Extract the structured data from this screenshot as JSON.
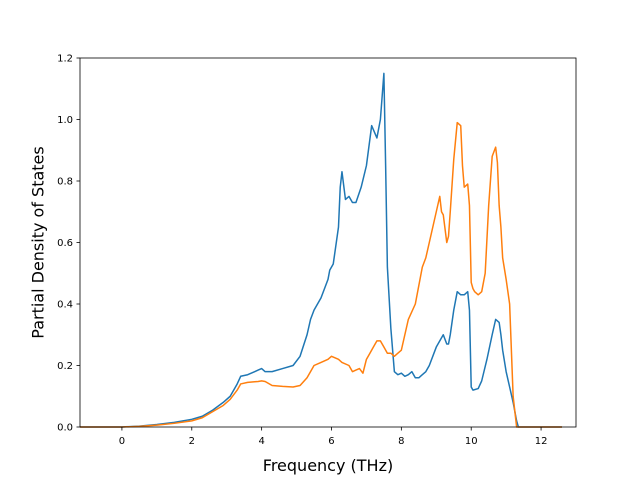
{
  "chart_data": {
    "type": "line",
    "title": "",
    "xlabel": "Frequency (THz)",
    "ylabel": "Partial Density of States",
    "xlim": [
      -1.2,
      13.0
    ],
    "ylim": [
      0.0,
      1.2
    ],
    "xticks": [
      0,
      2,
      4,
      6,
      8,
      10,
      12
    ],
    "xtick_labels": [
      "0",
      "2",
      "4",
      "6",
      "8",
      "10",
      "12"
    ],
    "yticks": [
      0.0,
      0.2,
      0.4,
      0.6,
      0.8,
      1.0,
      1.2
    ],
    "ytick_labels": [
      "0.0",
      "0.2",
      "0.4",
      "0.6",
      "0.8",
      "1.0",
      "1.2"
    ],
    "grid": false,
    "series": [
      {
        "color": "#1f77b4",
        "x": [
          -1.2,
          0,
          0.5,
          1,
          1.5,
          2,
          2.3,
          2.6,
          2.9,
          3.1,
          3.3,
          3.4,
          3.6,
          3.8,
          3.9,
          4.0,
          4.1,
          4.3,
          4.6,
          4.9,
          5.1,
          5.3,
          5.4,
          5.5,
          5.7,
          5.9,
          5.95,
          6.05,
          6.2,
          6.25,
          6.3,
          6.4,
          6.5,
          6.6,
          6.7,
          6.85,
          7.0,
          7.15,
          7.3,
          7.4,
          7.5,
          7.55,
          7.6,
          7.7,
          7.8,
          7.9,
          8.0,
          8.1,
          8.2,
          8.3,
          8.4,
          8.5,
          8.6,
          8.7,
          8.8,
          9.0,
          9.1,
          9.2,
          9.3,
          9.35,
          9.4,
          9.5,
          9.6,
          9.7,
          9.8,
          9.9,
          9.95,
          10.0,
          10.05,
          10.2,
          10.3,
          10.45,
          10.6,
          10.7,
          10.8,
          10.85,
          10.9,
          11.0,
          11.1,
          11.2,
          11.3,
          11.35,
          11.4,
          11.5,
          11.6,
          11.8,
          12.0,
          12.6
        ],
        "y": [
          0.0,
          0.0,
          0.003,
          0.008,
          0.015,
          0.025,
          0.035,
          0.055,
          0.08,
          0.1,
          0.14,
          0.165,
          0.17,
          0.18,
          0.185,
          0.19,
          0.18,
          0.18,
          0.19,
          0.2,
          0.23,
          0.3,
          0.35,
          0.38,
          0.42,
          0.48,
          0.51,
          0.53,
          0.65,
          0.78,
          0.83,
          0.74,
          0.75,
          0.73,
          0.73,
          0.78,
          0.85,
          0.98,
          0.94,
          1.0,
          1.15,
          0.85,
          0.52,
          0.32,
          0.18,
          0.17,
          0.175,
          0.165,
          0.17,
          0.18,
          0.16,
          0.16,
          0.17,
          0.18,
          0.2,
          0.26,
          0.28,
          0.3,
          0.27,
          0.27,
          0.3,
          0.38,
          0.44,
          0.43,
          0.43,
          0.44,
          0.38,
          0.13,
          0.12,
          0.125,
          0.15,
          0.22,
          0.3,
          0.35,
          0.34,
          0.3,
          0.25,
          0.18,
          0.13,
          0.08,
          0.02,
          0.0,
          0.0,
          0.0,
          0.0,
          0.0,
          0.0,
          0.0
        ]
      },
      {
        "color": "#ff7f0e",
        "x": [
          -1.2,
          0,
          0.5,
          1,
          1.5,
          2,
          2.3,
          2.6,
          2.9,
          3.1,
          3.3,
          3.4,
          3.6,
          3.8,
          3.9,
          4.0,
          4.1,
          4.3,
          4.6,
          4.9,
          5.1,
          5.3,
          5.4,
          5.5,
          5.7,
          5.9,
          6.0,
          6.1,
          6.2,
          6.3,
          6.5,
          6.6,
          6.7,
          6.8,
          6.9,
          7.0,
          7.1,
          7.2,
          7.3,
          7.4,
          7.5,
          7.6,
          7.7,
          7.8,
          7.9,
          8.0,
          8.2,
          8.4,
          8.6,
          8.7,
          8.8,
          9.0,
          9.1,
          9.15,
          9.2,
          9.3,
          9.35,
          9.4,
          9.5,
          9.6,
          9.7,
          9.75,
          9.8,
          9.9,
          9.95,
          10.0,
          10.05,
          10.1,
          10.2,
          10.3,
          10.4,
          10.5,
          10.6,
          10.7,
          10.75,
          10.8,
          10.85,
          10.9,
          11.0,
          11.1,
          11.2,
          11.3,
          11.4,
          11.5,
          11.6,
          12.0,
          12.6
        ],
        "y": [
          0.0,
          0.0,
          0.002,
          0.006,
          0.012,
          0.02,
          0.03,
          0.05,
          0.07,
          0.09,
          0.12,
          0.14,
          0.145,
          0.147,
          0.148,
          0.15,
          0.148,
          0.135,
          0.132,
          0.13,
          0.135,
          0.16,
          0.18,
          0.2,
          0.21,
          0.22,
          0.23,
          0.225,
          0.22,
          0.21,
          0.2,
          0.18,
          0.185,
          0.19,
          0.175,
          0.22,
          0.24,
          0.26,
          0.28,
          0.28,
          0.26,
          0.24,
          0.24,
          0.23,
          0.24,
          0.25,
          0.35,
          0.4,
          0.52,
          0.55,
          0.6,
          0.7,
          0.75,
          0.7,
          0.69,
          0.6,
          0.62,
          0.7,
          0.87,
          0.99,
          0.98,
          0.85,
          0.78,
          0.79,
          0.72,
          0.47,
          0.45,
          0.44,
          0.43,
          0.44,
          0.5,
          0.72,
          0.88,
          0.91,
          0.86,
          0.72,
          0.65,
          0.55,
          0.48,
          0.4,
          0.1,
          0.0,
          0.0,
          0.0,
          0.0,
          0.0,
          0.0
        ]
      }
    ]
  }
}
